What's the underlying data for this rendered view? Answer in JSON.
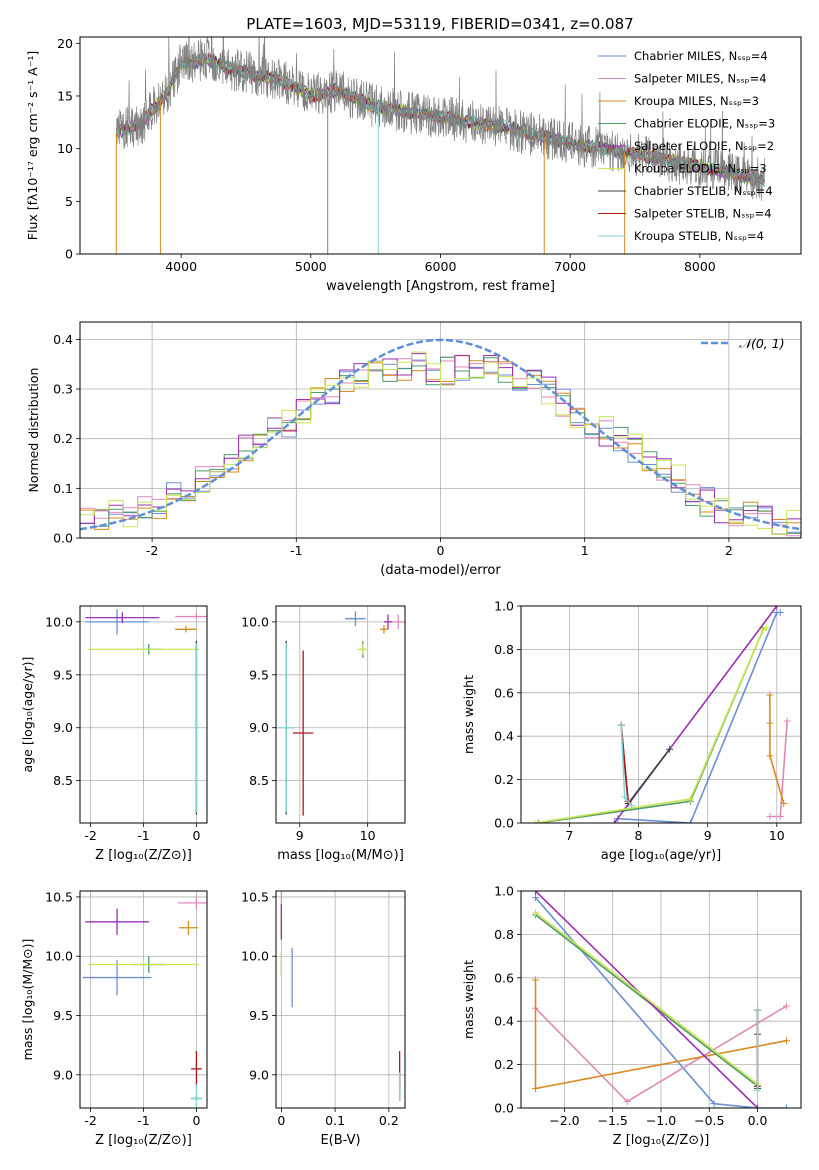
{
  "title": "PLATE=1603, MJD=53119, FIBERID=0341, z=0.087",
  "chart_data": [
    {
      "id": "spectrum",
      "type": "line",
      "xlabel": "wavelength [Angstrom, rest frame]",
      "ylabel": "Flux [fλ10⁻¹⁷ erg cm⁻² s⁻¹ A⁻¹]",
      "xlim": [
        3220,
        8780
      ],
      "ylim": [
        0,
        20.6
      ],
      "xticks": [
        4000,
        5000,
        6000,
        7000,
        8000
      ],
      "yticks": [
        0,
        5,
        10,
        15,
        20
      ],
      "grid": false,
      "legend_position": "top-right",
      "continuum": [
        [
          3500,
          11.5
        ],
        [
          3700,
          12.5
        ],
        [
          3900,
          15.5
        ],
        [
          4000,
          18
        ],
        [
          4200,
          18.5
        ],
        [
          4400,
          17.5
        ],
        [
          4600,
          17
        ],
        [
          4800,
          16.3
        ],
        [
          5000,
          15
        ],
        [
          5200,
          15.5
        ],
        [
          5500,
          14
        ],
        [
          6000,
          13
        ],
        [
          6500,
          12
        ],
        [
          7000,
          10.5
        ],
        [
          7500,
          9.5
        ],
        [
          8000,
          8.3
        ],
        [
          8500,
          7
        ]
      ],
      "data_range": [
        3500,
        8500
      ],
      "series": [
        {
          "name": "Chabrier MILES, Nₛₛₚ=4",
          "color": "#6a8fd6"
        },
        {
          "name": "Salpeter MILES, Nₛₛₚ=4",
          "color": "#e088b8"
        },
        {
          "name": "Kroupa MILES, Nₛₛₚ=3",
          "color": "#d98a1c"
        },
        {
          "name": "Chabrier ELODIE, Nₛₛₚ=3",
          "color": "#4f9a6a"
        },
        {
          "name": "Salpeter ELODIE, Nₛₛₚ=2",
          "color": "#9b2fb5"
        },
        {
          "name": "Kroupa ELODIE, Nₛₛₚ=3",
          "color": "#c8e650"
        },
        {
          "name": "Chabrier STELIB, Nₛₛₚ=4",
          "color": "#404040"
        },
        {
          "name": "Salpeter STELIB, Nₛₛₚ=4",
          "color": "#b01818"
        },
        {
          "name": "Kroupa STELIB, Nₛₛₚ=4",
          "color": "#7fd6d8"
        }
      ],
      "data_color": "#808080"
    },
    {
      "id": "residuals",
      "type": "line",
      "xlabel": "(data-model)/error",
      "ylabel": "Normed distribution",
      "xlim": [
        -2.5,
        2.5
      ],
      "ylim": [
        0,
        0.435
      ],
      "xticks": [
        -2,
        -1,
        0,
        1,
        2
      ],
      "yticks": [
        0.0,
        0.1,
        0.2,
        0.3,
        0.4
      ],
      "grid": true,
      "legend": "𝒩(0, 1)",
      "legend_position": "top-right",
      "gaussian_color": "#5f8fd8",
      "hist_colors": [
        "#6a8fd6",
        "#e088b8",
        "#d98a1c",
        "#4f9a6a",
        "#9b2fb5",
        "#c8e650"
      ],
      "hist_envelope": [
        [
          -2.5,
          0.04
        ],
        [
          -2.2,
          0.05
        ],
        [
          -2.0,
          0.06
        ],
        [
          -1.8,
          0.09
        ],
        [
          -1.6,
          0.13
        ],
        [
          -1.4,
          0.17
        ],
        [
          -1.2,
          0.21
        ],
        [
          -1.0,
          0.24
        ],
        [
          -0.8,
          0.29
        ],
        [
          -0.6,
          0.33
        ],
        [
          -0.4,
          0.34
        ],
        [
          -0.2,
          0.35
        ],
        [
          0.0,
          0.33
        ],
        [
          0.2,
          0.35
        ],
        [
          0.4,
          0.35
        ],
        [
          0.6,
          0.32
        ],
        [
          0.8,
          0.29
        ],
        [
          1.0,
          0.23
        ],
        [
          1.2,
          0.21
        ],
        [
          1.4,
          0.17
        ],
        [
          1.6,
          0.13
        ],
        [
          1.8,
          0.08
        ],
        [
          2.0,
          0.05
        ],
        [
          2.2,
          0.04
        ],
        [
          2.5,
          0.03
        ]
      ]
    },
    {
      "id": "age-vs-Z",
      "type": "scatter",
      "xlabel": "Z [log₁₀(Z/Z⊙)]",
      "ylabel": "age  [log₁₀(age/yr)]",
      "xlim": [
        -2.2,
        0.2
      ],
      "ylim": [
        8.1,
        10.15
      ],
      "xticks": [
        -2,
        -1,
        0
      ],
      "yticks": [
        8.5,
        9.0,
        9.5,
        10.0
      ],
      "grid": true,
      "crosses": [
        {
          "x": -1.5,
          "y": 10.0,
          "xe": 0.6,
          "ye": 0.12,
          "color": "#6a8fd6"
        },
        {
          "x": 0.0,
          "y": 10.05,
          "xe": 0.4,
          "ye": 0.03,
          "color": "#e088b8"
        },
        {
          "x": -0.2,
          "y": 9.93,
          "xe": 0.2,
          "ye": 0.03,
          "color": "#d98a1c"
        },
        {
          "x": -0.9,
          "y": 9.74,
          "xe": 0.25,
          "ye": 0.05,
          "color": "#4f9a6a"
        },
        {
          "x": -1.4,
          "y": 10.04,
          "xe": 0.7,
          "ye": 0.05,
          "color": "#9b2fb5"
        },
        {
          "x": -1.0,
          "y": 9.74,
          "xe": 1.05,
          "ye": 0.05,
          "color": "#c8e650"
        },
        {
          "x": 0.0,
          "y": 9.0,
          "xe": 0.02,
          "ye": 0.82,
          "color": "#404040"
        },
        {
          "x": 0.0,
          "y": 9.0,
          "xe": 0.02,
          "ye": 0.8,
          "color": "#b01818"
        },
        {
          "x": 0.0,
          "y": 9.0,
          "xe": 0.04,
          "ye": 0.8,
          "color": "#7fd6d8"
        }
      ]
    },
    {
      "id": "age-vs-mass",
      "type": "scatter",
      "xlabel": "mass [log₁₀(M/M⊙)]",
      "ylabel": "",
      "xlim": [
        8.65,
        10.55
      ],
      "ylim": [
        8.1,
        10.15
      ],
      "xticks": [
        9,
        10
      ],
      "yticks": [
        8.5,
        9.0,
        9.5,
        10.0
      ],
      "grid": true,
      "crosses": [
        {
          "x": 9.82,
          "y": 10.03,
          "xe": 0.15,
          "ye": 0.07,
          "color": "#6a8fd6"
        },
        {
          "x": 10.45,
          "y": 10.0,
          "xe": 0.1,
          "ye": 0.07,
          "color": "#e088b8"
        },
        {
          "x": 10.24,
          "y": 9.93,
          "xe": 0.06,
          "ye": 0.04,
          "color": "#d98a1c"
        },
        {
          "x": 9.93,
          "y": 9.74,
          "xe": 0.05,
          "ye": 0.08,
          "color": "#4f9a6a"
        },
        {
          "x": 10.3,
          "y": 10.0,
          "xe": 0.06,
          "ye": 0.07,
          "color": "#9b2fb5"
        },
        {
          "x": 9.93,
          "y": 9.74,
          "xe": 0.08,
          "ye": 0.05,
          "color": "#c8e650"
        },
        {
          "x": 8.8,
          "y": 9.0,
          "xe": 0.02,
          "ye": 0.82,
          "color": "#404040"
        },
        {
          "x": 9.05,
          "y": 8.95,
          "xe": 0.15,
          "ye": 0.78,
          "color": "#b01818"
        },
        {
          "x": 8.8,
          "y": 9.0,
          "xe": 0.12,
          "ye": 0.8,
          "color": "#7fd6d8"
        }
      ]
    },
    {
      "id": "weight-vs-age",
      "type": "line",
      "xlabel": "age  [log₁₀(age/yr)]",
      "ylabel": "mass weight",
      "xlim": [
        6.3,
        10.35
      ],
      "ylim": [
        0,
        1.0
      ],
      "xticks": [
        7,
        8,
        9,
        10
      ],
      "yticks": [
        0.0,
        0.2,
        0.4,
        0.6,
        0.8,
        1.0
      ],
      "grid": true,
      "series": [
        {
          "color": "#6a8fd6",
          "points": [
            [
              7.7,
              0.02
            ],
            [
              8.75,
              0.0
            ],
            [
              10.0,
              0.97
            ],
            [
              10.05,
              0.97
            ]
          ]
        },
        {
          "color": "#e088b8",
          "points": [
            [
              9.9,
              0.03
            ],
            [
              10.05,
              0.03
            ],
            [
              10.15,
              0.47
            ]
          ]
        },
        {
          "color": "#d98a1c",
          "points": [
            [
              9.9,
              0.59
            ],
            [
              9.9,
              0.46
            ],
            [
              9.9,
              0.31
            ],
            [
              10.1,
              0.09
            ]
          ]
        },
        {
          "color": "#4f9a6a",
          "points": [
            [
              6.55,
              0.0
            ],
            [
              8.75,
              0.1
            ],
            [
              9.8,
              0.89
            ],
            [
              9.8,
              0.9
            ]
          ]
        },
        {
          "color": "#9b2fb5",
          "points": [
            [
              7.65,
              0.0
            ],
            [
              10.0,
              1.0
            ]
          ]
        },
        {
          "color": "#c8e650",
          "points": [
            [
              6.5,
              0.0
            ],
            [
              8.75,
              0.11
            ],
            [
              9.8,
              0.89
            ],
            [
              9.85,
              0.9
            ]
          ]
        },
        {
          "color": "#404040",
          "points": [
            [
              7.75,
              0.45
            ],
            [
              7.85,
              0.09
            ],
            [
              8.45,
              0.34
            ]
          ]
        },
        {
          "color": "#b01818",
          "points": [
            [
              7.75,
              0.45
            ],
            [
              7.85,
              0.1
            ]
          ]
        },
        {
          "color": "#7fd6d8",
          "points": [
            [
              7.75,
              0.45
            ],
            [
              7.8,
              0.12
            ],
            [
              7.9,
              0.08
            ]
          ]
        }
      ]
    },
    {
      "id": "mass-vs-Z",
      "type": "scatter",
      "xlabel": "Z [log₁₀(Z/Z⊙)]",
      "ylabel": "mass [log₁₀(M/M⊙)]",
      "xlim": [
        -2.2,
        0.2
      ],
      "ylim": [
        8.72,
        10.55
      ],
      "xticks": [
        -2,
        -1,
        0
      ],
      "yticks": [
        9.0,
        9.5,
        10.0,
        10.5
      ],
      "grid": true,
      "crosses": [
        {
          "x": -1.5,
          "y": 9.82,
          "xe": 0.65,
          "ye": 0.15,
          "color": "#6a8fd6"
        },
        {
          "x": 0.0,
          "y": 10.45,
          "xe": 0.35,
          "ye": 0.05,
          "color": "#e088b8"
        },
        {
          "x": -0.15,
          "y": 10.24,
          "xe": 0.18,
          "ye": 0.06,
          "color": "#d98a1c"
        },
        {
          "x": -0.9,
          "y": 9.93,
          "xe": 0.3,
          "ye": 0.07,
          "color": "#4f9a6a"
        },
        {
          "x": -1.5,
          "y": 10.29,
          "xe": 0.6,
          "ye": 0.11,
          "color": "#9b2fb5"
        },
        {
          "x": -1.0,
          "y": 9.93,
          "xe": 1.05,
          "ye": 0.05,
          "color": "#c8e650"
        },
        {
          "x": 0.0,
          "y": 8.8,
          "xe": 0.1,
          "ye": 0.02,
          "color": "#404040"
        },
        {
          "x": 0.0,
          "y": 9.05,
          "xe": 0.1,
          "ye": 0.15,
          "color": "#b01818"
        },
        {
          "x": 0.0,
          "y": 8.8,
          "xe": 0.1,
          "ye": 0.12,
          "color": "#7fd6d8"
        }
      ]
    },
    {
      "id": "mass-vs-ebv",
      "type": "scatter",
      "xlabel": "E(B-V)",
      "ylabel": "",
      "xlim": [
        -0.01,
        0.23
      ],
      "ylim": [
        8.72,
        10.55
      ],
      "xticks": [
        0.0,
        0.1,
        0.2
      ],
      "yticks": [
        9.0,
        9.5,
        10.0,
        10.5
      ],
      "grid": true,
      "crosses": [
        {
          "x": 0.02,
          "y": 9.82,
          "xe": 0.0,
          "ye": 0.25,
          "color": "#6a8fd6"
        },
        {
          "x": 0.0,
          "y": 10.45,
          "xe": 0.0,
          "ye": 0.1,
          "color": "#e088b8"
        },
        {
          "x": 0.0,
          "y": 10.24,
          "xe": 0.0,
          "ye": 0.1,
          "color": "#d98a1c"
        },
        {
          "x": 0.0,
          "y": 9.93,
          "xe": 0.0,
          "ye": 0.1,
          "color": "#4f9a6a"
        },
        {
          "x": 0.0,
          "y": 10.29,
          "xe": 0.0,
          "ye": 0.15,
          "color": "#9b2fb5"
        },
        {
          "x": 0.0,
          "y": 9.93,
          "xe": 0.0,
          "ye": 0.12,
          "color": "#c8e650"
        },
        {
          "x": 0.22,
          "y": 8.9,
          "xe": 0.0,
          "ye": 0.12,
          "color": "#404040"
        },
        {
          "x": 0.22,
          "y": 9.05,
          "xe": 0.0,
          "ye": 0.15,
          "color": "#b01818"
        },
        {
          "x": 0.22,
          "y": 8.9,
          "xe": 0.0,
          "ye": 0.12,
          "color": "#7fd6d8"
        }
      ]
    },
    {
      "id": "weight-vs-Z",
      "type": "line",
      "xlabel": "Z [log₁₀(Z/Z⊙)]",
      "ylabel": "mass weight",
      "xlim": [
        -2.45,
        0.45
      ],
      "ylim": [
        0,
        1.0
      ],
      "xticks": [
        -2.0,
        -1.5,
        -1.0,
        -0.5,
        0.0
      ],
      "xticklabels": [
        "−2.0",
        "−1.5",
        "−1.0",
        "−0.5",
        "0.0"
      ],
      "yticks": [
        0.0,
        0.2,
        0.4,
        0.6,
        0.8,
        1.0
      ],
      "grid": true,
      "series": [
        {
          "color": "#6a8fd6",
          "points": [
            [
              -2.3,
              0.97
            ],
            [
              -0.45,
              0.02
            ],
            [
              0.0,
              0.0
            ],
            [
              0.3,
              0.0
            ]
          ]
        },
        {
          "color": "#e088b8",
          "points": [
            [
              -2.3,
              0.46
            ],
            [
              -1.35,
              0.03
            ],
            [
              0.3,
              0.47
            ]
          ]
        },
        {
          "color": "#d98a1c",
          "points": [
            [
              -2.3,
              0.59
            ],
            [
              -2.3,
              0.09
            ],
            [
              0.3,
              0.31
            ]
          ]
        },
        {
          "color": "#4f9a6a",
          "points": [
            [
              -2.3,
              0.89
            ],
            [
              0.0,
              0.1
            ]
          ]
        },
        {
          "color": "#9b2fb5",
          "points": [
            [
              -2.3,
              1.0
            ],
            [
              0.0,
              0.0
            ]
          ]
        },
        {
          "color": "#c8e650",
          "points": [
            [
              -2.3,
              0.9
            ],
            [
              0.0,
              0.11
            ]
          ]
        },
        {
          "color": "#404040",
          "points": [
            [
              0.0,
              0.45
            ],
            [
              0.0,
              0.09
            ],
            [
              0.0,
              0.34
            ]
          ]
        },
        {
          "color": "#b01818",
          "points": [
            [
              0.0,
              0.45
            ],
            [
              0.0,
              0.1
            ]
          ]
        },
        {
          "color": "#7fd6d8",
          "points": [
            [
              0.0,
              0.45
            ],
            [
              0.0,
              0.08
            ]
          ]
        }
      ]
    }
  ]
}
